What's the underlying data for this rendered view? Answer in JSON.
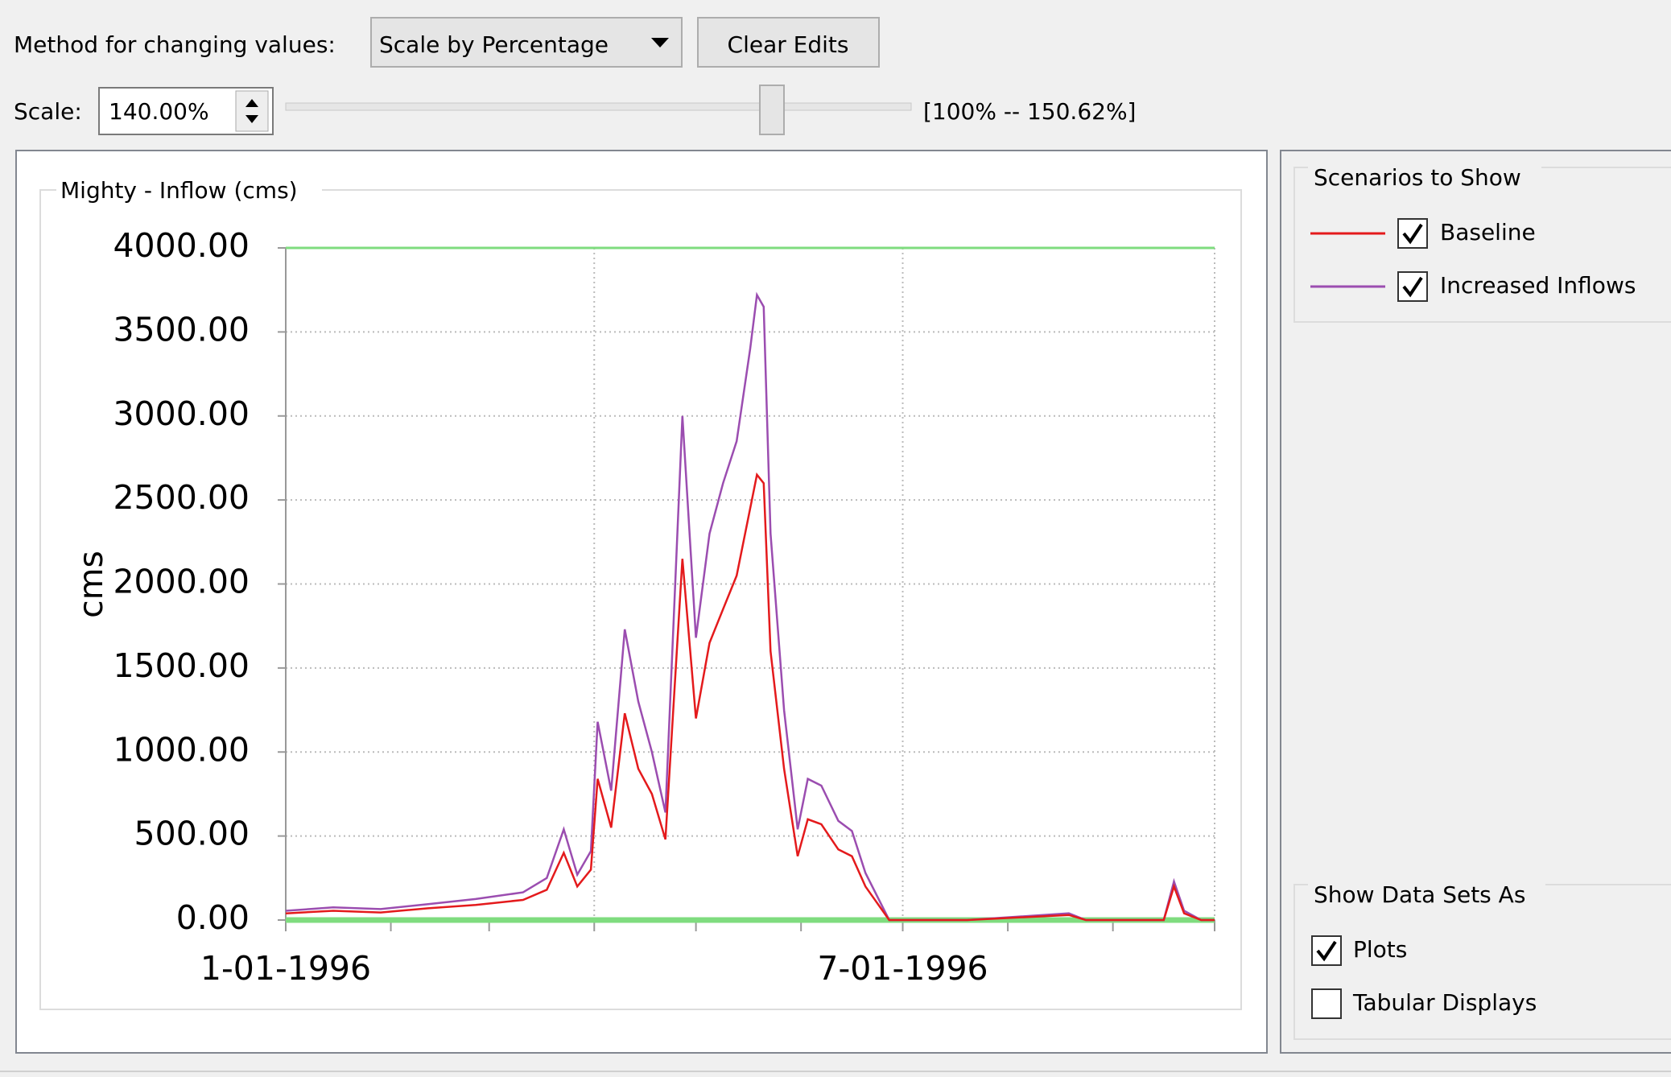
{
  "controls": {
    "method_label": "Method for changing values:",
    "method_value": "Scale by Percentage",
    "clear_button": "Clear Edits",
    "scale_label": "Scale:",
    "scale_value": "140.00%",
    "scale_range": "[100% -- 150.62%]"
  },
  "chart_data": {
    "type": "line",
    "title": "Mighty - Inflow (cms)",
    "y_label": "cms",
    "x": [
      "1-01-1996",
      "1-15-1996",
      "1-29-1996",
      "2-12-1996",
      "2-26-1996",
      "3-11-1996",
      "3-18-1996",
      "3-23-1996",
      "3-27-1996",
      "3-31-1996",
      "4-02-1996",
      "4-06-1996",
      "4-10-1996",
      "4-14-1996",
      "4-18-1996",
      "4-22-1996",
      "4-27-1996",
      "5-01-1996",
      "5-05-1996",
      "5-09-1996",
      "5-13-1996",
      "5-17-1996",
      "5-19-1996",
      "5-21-1996",
      "5-23-1996",
      "5-27-1996",
      "5-31-1996",
      "6-03-1996",
      "6-07-1996",
      "6-12-1996",
      "6-16-1996",
      "6-20-1996",
      "6-27-1996",
      "7-20-1996",
      "8-19-1996",
      "8-24-1996",
      "9-16-1996",
      "9-19-1996",
      "9-22-1996",
      "9-27-1996",
      "10-01-1996"
    ],
    "series": [
      {
        "name": "Baseline",
        "color": "#e41a1c",
        "values": [
          40,
          55,
          45,
          70,
          90,
          120,
          180,
          400,
          200,
          300,
          840,
          550,
          1230,
          900,
          750,
          480,
          2150,
          1200,
          1650,
          1850,
          2050,
          2450,
          2650,
          2600,
          1600,
          900,
          380,
          600,
          570,
          420,
          380,
          200,
          0,
          0,
          30,
          0,
          0,
          200,
          40,
          0,
          0
        ]
      },
      {
        "name": "Increased Inflows",
        "color": "#9b4db0",
        "values": [
          55,
          75,
          65,
          95,
          125,
          165,
          250,
          540,
          270,
          410,
          1180,
          770,
          1730,
          1300,
          1000,
          640,
          3000,
          1680,
          2300,
          2600,
          2850,
          3400,
          3720,
          3650,
          2300,
          1250,
          540,
          840,
          800,
          590,
          530,
          280,
          0,
          0,
          40,
          0,
          0,
          230,
          55,
          0,
          0
        ]
      }
    ],
    "xlim": [
      "1-01-1996",
      "10-01-1996"
    ],
    "xticks": [
      "1-01-1996",
      {
        "value": "2-01-1996",
        "label": null
      },
      {
        "value": "3-01-1996",
        "label": null
      },
      {
        "value": "4-01-1996",
        "label": null
      },
      {
        "value": "5-01-1996",
        "label": null
      },
      {
        "value": "6-01-1996",
        "label": null
      },
      "7-01-1996",
      {
        "value": "8-01-1996",
        "label": null
      },
      {
        "value": "9-01-1996",
        "label": null
      },
      {
        "value": "10-01-1996",
        "label": null
      }
    ],
    "ylim": [
      0,
      4000
    ],
    "yticks": [
      {
        "value": 0,
        "label": "0.00"
      },
      {
        "value": 500,
        "label": "500.00"
      },
      {
        "value": 1000,
        "label": "1000.00"
      },
      {
        "value": 1500,
        "label": "1500.00"
      },
      {
        "value": 2000,
        "label": "2000.00"
      },
      {
        "value": 2500,
        "label": "2500.00"
      },
      {
        "value": 3000,
        "label": "3000.00"
      },
      {
        "value": 3500,
        "label": "3500.00"
      },
      {
        "value": 4000,
        "label": "4000.00"
      }
    ],
    "grid": true,
    "limit_line_color": "#7fdc7f",
    "legend_title": "Scenarios to Show",
    "legend_checked": [
      true,
      true
    ]
  },
  "display_options": {
    "title": "Show Data Sets As",
    "options": [
      {
        "label": "Plots",
        "checked": true
      },
      {
        "label": "Tabular Displays",
        "checked": false
      }
    ]
  }
}
